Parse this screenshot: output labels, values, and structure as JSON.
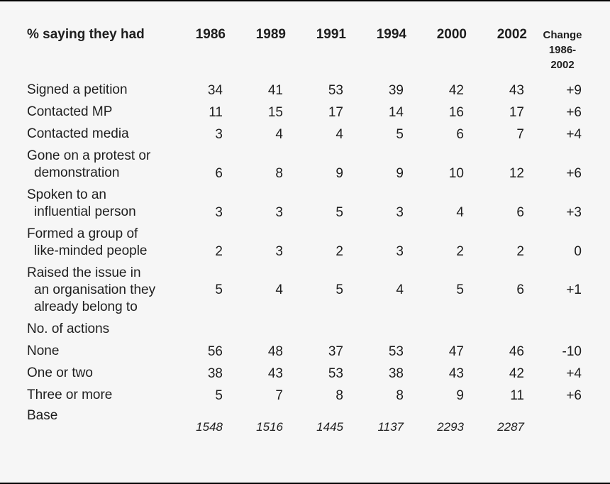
{
  "page": {
    "background_color": "#f6f6f6",
    "text_color": "#1e1e1e",
    "rule_color": "#000000"
  },
  "table": {
    "header": {
      "label": "% saying they had",
      "years": [
        "1986",
        "1989",
        "1991",
        "1994",
        "2000",
        "2002"
      ],
      "change_lines": [
        "Change",
        "1986-",
        "2002"
      ]
    },
    "rows": [
      {
        "type": "data",
        "label_lines": [
          "Signed a petition"
        ],
        "values": [
          "34",
          "41",
          "53",
          "39",
          "42",
          "43"
        ],
        "change": "+9"
      },
      {
        "type": "data",
        "label_lines": [
          "Contacted MP"
        ],
        "values": [
          "11",
          "15",
          "17",
          "14",
          "16",
          "17"
        ],
        "change": "+6"
      },
      {
        "type": "data",
        "label_lines": [
          "Contacted media"
        ],
        "values": [
          "3",
          "4",
          "4",
          "5",
          "6",
          "7"
        ],
        "change": "+4"
      },
      {
        "type": "data",
        "label_lines": [
          "Gone on a protest or",
          "demonstration"
        ],
        "values": [
          "6",
          "8",
          "9",
          "9",
          "10",
          "12"
        ],
        "change": "+6"
      },
      {
        "type": "data",
        "label_lines": [
          "Spoken to an",
          "influential person"
        ],
        "values": [
          "3",
          "3",
          "5",
          "3",
          "4",
          "6"
        ],
        "change": "+3"
      },
      {
        "type": "data",
        "label_lines": [
          "Formed a group of",
          "like-minded people"
        ],
        "values": [
          "2",
          "3",
          "2",
          "3",
          "2",
          "2"
        ],
        "change": "0"
      },
      {
        "type": "data",
        "label_lines": [
          "Raised the issue in",
          "an organisation they",
          "already belong to"
        ],
        "values": [
          "5",
          "4",
          "5",
          "4",
          "5",
          "6"
        ],
        "change": "+1"
      },
      {
        "type": "section",
        "label_lines": [
          "No. of actions"
        ],
        "values": [
          "",
          "",
          "",
          "",
          "",
          ""
        ],
        "change": ""
      },
      {
        "type": "data",
        "label_lines": [
          "None"
        ],
        "values": [
          "56",
          "48",
          "37",
          "53",
          "47",
          "46"
        ],
        "change": "-10"
      },
      {
        "type": "data",
        "label_lines": [
          "One or two"
        ],
        "values": [
          "38",
          "43",
          "53",
          "38",
          "43",
          "42"
        ],
        "change": "+4"
      },
      {
        "type": "data",
        "label_lines": [
          "Three or more"
        ],
        "values": [
          "5",
          "7",
          "8",
          "8",
          "9",
          "11"
        ],
        "change": "+6"
      },
      {
        "type": "base",
        "label_lines": [
          "Base"
        ],
        "values": [
          "1548",
          "1516",
          "1445",
          "1137",
          "2293",
          "2287"
        ],
        "change": ""
      }
    ]
  }
}
